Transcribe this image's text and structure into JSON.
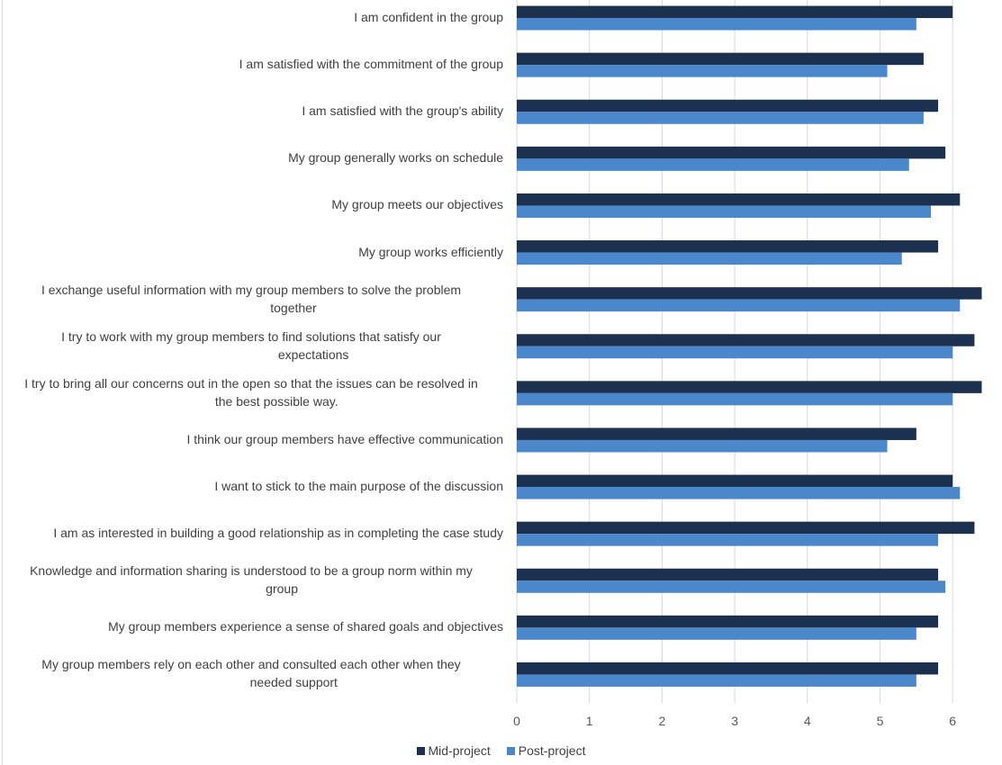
{
  "chart_data": {
    "type": "bar",
    "orientation": "horizontal",
    "title": "",
    "xlabel": "",
    "ylabel": "",
    "xlim": [
      0,
      6.5
    ],
    "x_ticks": [
      "0",
      "1",
      "2",
      "3",
      "4",
      "5",
      "6"
    ],
    "grid": true,
    "legend_position": "bottom",
    "categories": [
      "I am confident in the group",
      "I am satisfied with the commitment of the group",
      "I am satisfied with the group's ability",
      "My group generally works on schedule",
      "My group meets our objectives",
      "My group works efficiently",
      "I exchange useful information with my group members to solve the problem together",
      "I try to work with my group members to find solutions that satisfy our expectations",
      "I try to bring all our concerns out in the open so that the issues can be resolved in the best possible way.",
      "I think our group members have effective communication",
      "I want to stick to the main purpose of the discussion",
      "I am as interested in building a good relationship as in completing the case study",
      "Knowledge and information sharing is understood to be a group norm within my group",
      "My group members experience a sense of shared goals and objectives",
      "My group members rely on each other and consulted each other when they needed support"
    ],
    "category_lines": [
      [
        "I am confident in the group"
      ],
      [
        "I am satisfied with the commitment of the group"
      ],
      [
        "I am satisfied with the group's ability"
      ],
      [
        "My group generally works on schedule"
      ],
      [
        "My group meets our objectives"
      ],
      [
        "My group works efficiently"
      ],
      [
        "I exchange useful information with my group members to solve the problem",
        "together"
      ],
      [
        "I try to work with my group members to find solutions that satisfy our",
        "expectations"
      ],
      [
        "I try to bring all our concerns out in the open so that the issues can be resolved in",
        "the best possible way."
      ],
      [
        "I think our group members have effective communication"
      ],
      [
        "I want to stick to the main purpose of the discussion"
      ],
      [
        "I am as interested in building a good relationship as in completing the case study"
      ],
      [
        "Knowledge and information sharing is understood to be a group norm within my",
        "group"
      ],
      [
        "My group members experience a sense of shared goals and objectives"
      ],
      [
        "My group members rely on each other and consulted each other when they",
        "needed support"
      ]
    ],
    "series": [
      {
        "name": "Mid-project",
        "color": "#1c3050",
        "values": [
          6.0,
          5.6,
          5.8,
          5.9,
          6.1,
          5.8,
          6.4,
          6.3,
          6.4,
          5.5,
          6.0,
          6.3,
          5.8,
          5.8,
          5.8
        ]
      },
      {
        "name": "Post-project",
        "color": "#4a88cb",
        "values": [
          5.5,
          5.1,
          5.6,
          5.4,
          5.7,
          5.3,
          6.1,
          6.0,
          6.0,
          5.1,
          6.1,
          5.8,
          5.9,
          5.5,
          5.5
        ]
      }
    ]
  },
  "legend": {
    "items": [
      {
        "label": "Mid-project",
        "color": "#1c3050"
      },
      {
        "label": "Post-project",
        "color": "#4a88cb"
      }
    ]
  },
  "colors": {
    "gridline": "#d9d9d9",
    "text": "#404040"
  }
}
